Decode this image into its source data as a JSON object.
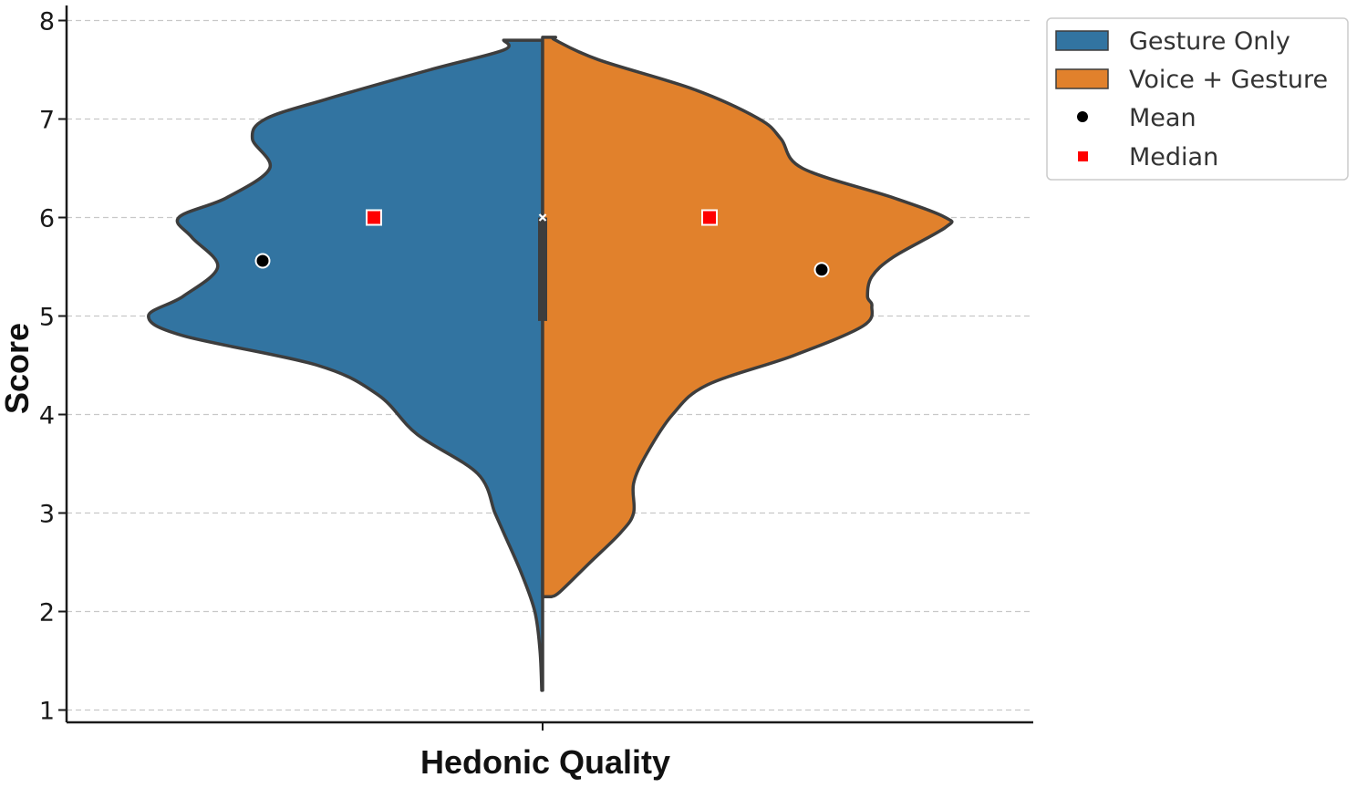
{
  "chart_data": {
    "type": "violin",
    "title": "",
    "xlabel": "Hedonic Quality",
    "ylabel": "Score",
    "categories": [
      "Hedonic Quality"
    ],
    "ylim": [
      1,
      8
    ],
    "yticks": [
      1,
      2,
      3,
      4,
      5,
      6,
      7,
      8
    ],
    "ytick_labels": [
      "1",
      "2",
      "3",
      "4",
      "5",
      "6",
      "7",
      "8"
    ],
    "grid": "horizontal dashed",
    "split": true,
    "series": [
      {
        "name": "Gesture Only",
        "side": "left",
        "color": "#3274a1",
        "mean": 5.56,
        "median": 6.0,
        "min": 1.2,
        "max": 7.8,
        "density_profile": [
          [
            1.2,
            0.002
          ],
          [
            1.6,
            0.006
          ],
          [
            2.0,
            0.018
          ],
          [
            2.4,
            0.05
          ],
          [
            2.8,
            0.09
          ],
          [
            3.0,
            0.11
          ],
          [
            3.4,
            0.15
          ],
          [
            3.8,
            0.29
          ],
          [
            4.2,
            0.38
          ],
          [
            4.5,
            0.52
          ],
          [
            4.8,
            0.83
          ],
          [
            5.0,
            0.91
          ],
          [
            5.2,
            0.83
          ],
          [
            5.5,
            0.75
          ],
          [
            5.8,
            0.81
          ],
          [
            6.0,
            0.84
          ],
          [
            6.2,
            0.73
          ],
          [
            6.5,
            0.63
          ],
          [
            6.8,
            0.67
          ],
          [
            7.0,
            0.64
          ],
          [
            7.2,
            0.5
          ],
          [
            7.5,
            0.26
          ],
          [
            7.7,
            0.09
          ],
          [
            7.8,
            0.09
          ]
        ]
      },
      {
        "name": "Voice + Gesture",
        "side": "right",
        "color": "#e1812c",
        "mean": 5.47,
        "median": 6.0,
        "min": 2.15,
        "max": 7.83,
        "density_profile": [
          [
            2.15,
            0.02
          ],
          [
            2.2,
            0.04
          ],
          [
            2.5,
            0.11
          ],
          [
            2.8,
            0.18
          ],
          [
            3.0,
            0.21
          ],
          [
            3.3,
            0.21
          ],
          [
            3.6,
            0.24
          ],
          [
            4.0,
            0.3
          ],
          [
            4.3,
            0.38
          ],
          [
            4.6,
            0.58
          ],
          [
            4.9,
            0.74
          ],
          [
            5.1,
            0.76
          ],
          [
            5.2,
            0.75
          ],
          [
            5.4,
            0.76
          ],
          [
            5.6,
            0.81
          ],
          [
            5.9,
            0.93
          ],
          [
            6.0,
            0.93
          ],
          [
            6.2,
            0.81
          ],
          [
            6.5,
            0.6
          ],
          [
            6.8,
            0.55
          ],
          [
            7.0,
            0.5
          ],
          [
            7.3,
            0.35
          ],
          [
            7.6,
            0.13
          ],
          [
            7.8,
            0.03
          ],
          [
            7.83,
            0.03
          ]
        ]
      }
    ],
    "box": {
      "q1": 4.95,
      "q3": 6.0,
      "median": 6.0
    },
    "legend": {
      "position": "top-right",
      "entries": [
        {
          "label": "Gesture Only",
          "marker": "patch",
          "color": "#3274a1"
        },
        {
          "label": "Voice + Gesture",
          "marker": "patch",
          "color": "#e1812c"
        },
        {
          "label": "Mean",
          "marker": "circle",
          "color": "#000000"
        },
        {
          "label": "Median",
          "marker": "square",
          "color": "#ff0000"
        }
      ]
    }
  }
}
